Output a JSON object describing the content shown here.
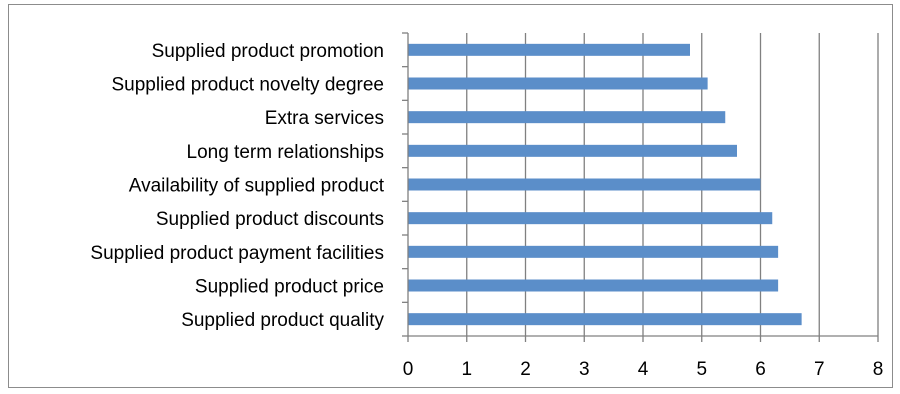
{
  "chart_data": {
    "type": "bar",
    "orientation": "horizontal",
    "categories": [
      "Supplied product promotion",
      "Supplied product novelty degree",
      "Extra services",
      "Long term relationships",
      "Availability of supplied product",
      "Supplied product discounts",
      "Supplied product payment facilities",
      "Supplied product price",
      "Supplied product quality"
    ],
    "values": [
      4.8,
      5.1,
      5.4,
      5.6,
      6.0,
      6.2,
      6.3,
      6.3,
      6.7
    ],
    "xlim": [
      0,
      8
    ],
    "xticks": [
      "0",
      "1",
      "2",
      "3",
      "4",
      "5",
      "6",
      "7",
      "8"
    ],
    "grid": "vertical",
    "legend": "none",
    "bar_color": "#5b8ec9",
    "grid_color": "#808080"
  }
}
